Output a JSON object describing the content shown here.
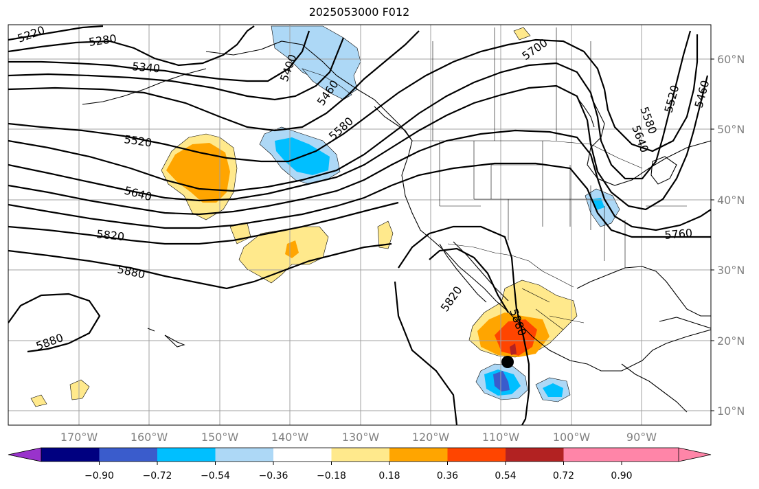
{
  "title": "2025053000 F012",
  "lat_ticks": [
    "60°N",
    "50°N",
    "40°N",
    "30°N",
    "20°N",
    "10°N"
  ],
  "lon_ticks": [
    "170°W",
    "160°W",
    "150°W",
    "140°W",
    "130°W",
    "120°W",
    "110°W",
    "100°W",
    "90°W"
  ],
  "contour_labels": [
    {
      "id": "c5220a",
      "text": "5220"
    },
    {
      "id": "c5280",
      "text": "5280"
    },
    {
      "id": "c5340",
      "text": "5340"
    },
    {
      "id": "c5400",
      "text": "5400"
    },
    {
      "id": "c5460a",
      "text": "5460"
    },
    {
      "id": "c5520a",
      "text": "5520"
    },
    {
      "id": "c5580a",
      "text": "5580"
    },
    {
      "id": "c5640a",
      "text": "5640"
    },
    {
      "id": "c5700",
      "text": "5700"
    },
    {
      "id": "c5820a",
      "text": "5820"
    },
    {
      "id": "c5880a",
      "text": "5880"
    },
    {
      "id": "c5880b",
      "text": "5880"
    },
    {
      "id": "c5820b",
      "text": "5820"
    },
    {
      "id": "c5880c",
      "text": "5880"
    },
    {
      "id": "c5580b",
      "text": "5580"
    },
    {
      "id": "c5640b",
      "text": "5640"
    },
    {
      "id": "c5520b",
      "text": "5520"
    },
    {
      "id": "c5460b",
      "text": "5460"
    },
    {
      "id": "c5760",
      "text": "5760"
    }
  ],
  "colorbar": {
    "colors": [
      "#9933cc",
      "#000080",
      "#3a5ccc",
      "#00bfff",
      "#add8f6",
      "#ffffff",
      "#ffe98c",
      "#ffa500",
      "#ff4500",
      "#b22222",
      "#ff85a8"
    ],
    "labels": [
      "−0.90",
      "−0.72",
      "−0.54",
      "−0.36",
      "−0.18",
      "0.18",
      "0.36",
      "0.54",
      "0.72",
      "0.90"
    ]
  },
  "marker": {
    "lat": 17,
    "lon": -109,
    "color": "#000000"
  }
}
